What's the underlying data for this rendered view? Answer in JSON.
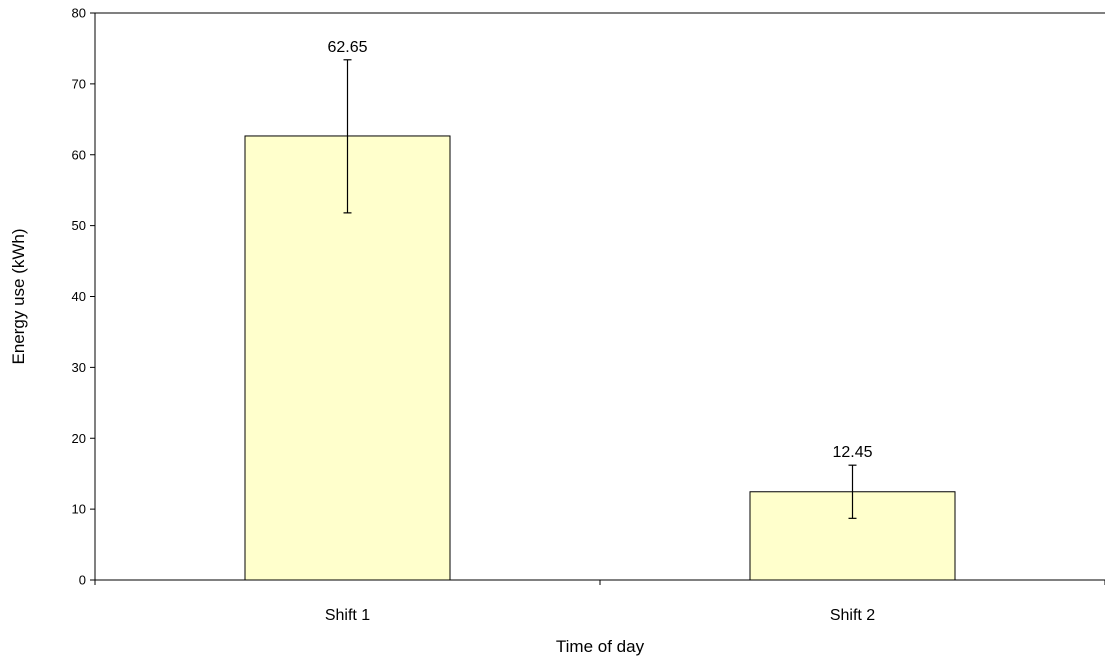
{
  "chart_data": {
    "type": "bar",
    "categories": [
      "Shift 1",
      "Shift 2"
    ],
    "values": [
      62.65,
      12.45
    ],
    "data_labels": [
      "62.65",
      "12.45"
    ],
    "error_bars": [
      {
        "upper": 73.4,
        "lower": 51.8
      },
      {
        "upper": 16.2,
        "lower": 8.7
      }
    ],
    "xlabel": "Time of day",
    "ylabel": "Energy use (kWh)",
    "ylim": [
      0,
      80
    ],
    "yticks": [
      "0",
      "10",
      "20",
      "30",
      "40",
      "50",
      "60",
      "70",
      "80"
    ],
    "grid": false,
    "legend": "none",
    "colors": {
      "bar_fill": "#ffffcc",
      "bar_stroke": "#000000",
      "axis": "#000000"
    }
  }
}
